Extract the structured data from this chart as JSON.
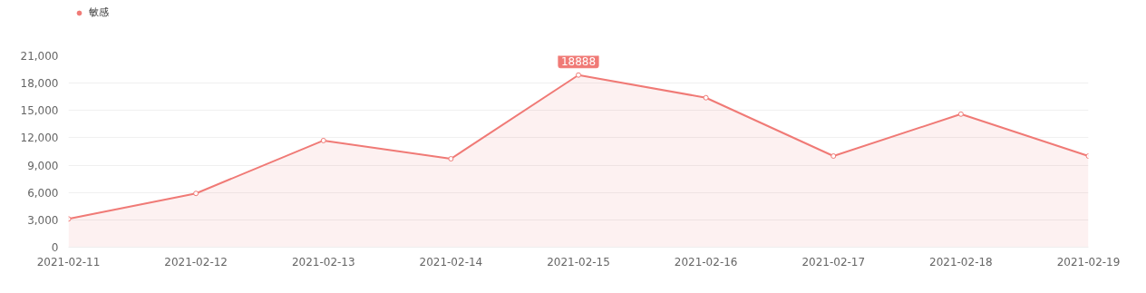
{
  "chart_data": {
    "type": "area",
    "categories": [
      "2021-02-11",
      "2021-02-12",
      "2021-02-13",
      "2021-02-14",
      "2021-02-15",
      "2021-02-16",
      "2021-02-17",
      "2021-02-18",
      "2021-02-19"
    ],
    "series": [
      {
        "name": "敏感",
        "color": "#f07a76",
        "values": [
          3100,
          5900,
          11700,
          9700,
          18888,
          16400,
          10000,
          14600,
          10000
        ],
        "value_labels": [
          null,
          null,
          null,
          null,
          "18888",
          null,
          null,
          null,
          null
        ]
      }
    ],
    "ylim": [
      0,
      21000
    ],
    "yticks": [
      {
        "value": 0,
        "label": "0"
      },
      {
        "value": 3000,
        "label": "3,000"
      },
      {
        "value": 6000,
        "label": "6,000"
      },
      {
        "value": 9000,
        "label": "9,000"
      },
      {
        "value": 12000,
        "label": "12,000"
      },
      {
        "value": 15000,
        "label": "15,000"
      },
      {
        "value": 18000,
        "label": "18,000"
      },
      {
        "value": 21000,
        "label": "21,000"
      }
    ],
    "grid": "y",
    "legend": "top left",
    "marker": "circle",
    "line_style": "solid"
  }
}
